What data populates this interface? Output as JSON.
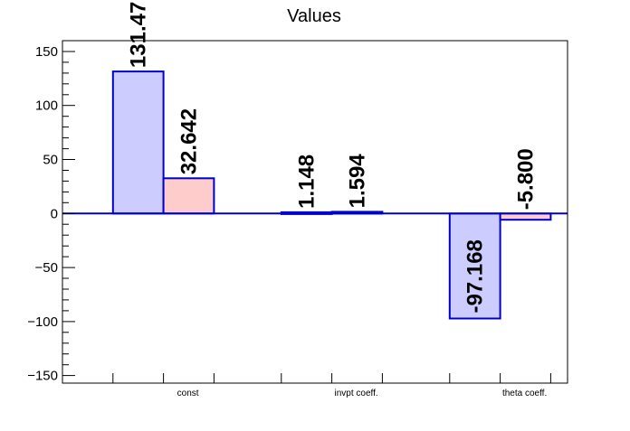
{
  "chart_data": {
    "type": "bar",
    "title": "Values",
    "xlabel": "",
    "ylabel": "",
    "categories": [
      "const",
      "invpt coeff.",
      "theta coeff."
    ],
    "series": [
      {
        "values": [
          131.47,
          1.148,
          -97.168
        ],
        "fill": "#ccccff",
        "stroke": "#0000cc"
      },
      {
        "values": [
          32.642,
          1.594,
          -5.8
        ],
        "fill": "#ffcccc",
        "stroke": "#0000cc"
      }
    ],
    "data_labels": [
      [
        "131.47",
        "1.148",
        "-97.168"
      ],
      [
        "32.642",
        "1.594",
        "-5.800"
      ]
    ],
    "ylim": [
      -157,
      160
    ],
    "yticks": [
      -150,
      -100,
      -50,
      0,
      50,
      100,
      150
    ],
    "ytick_labels": [
      "−150",
      "−100",
      "−50",
      "0",
      "50",
      "100",
      "150"
    ],
    "grid": false,
    "legend": "none",
    "zero_line_color": "#0000cc",
    "axis_color": "#000000"
  }
}
